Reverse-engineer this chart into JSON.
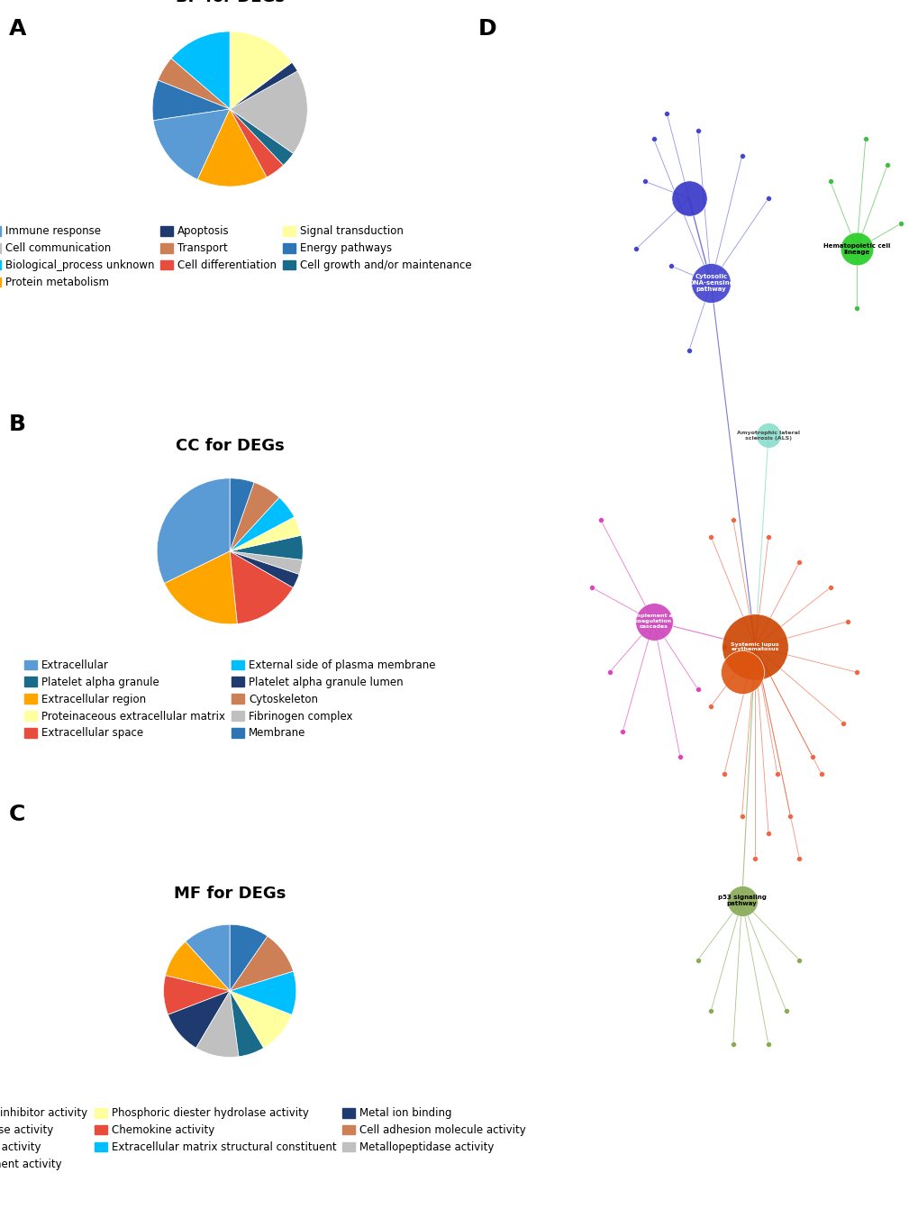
{
  "bp_title": "BP for DEGs",
  "bp_labels": [
    "Biological_process unknown",
    "Transport",
    "Energy pathways",
    "Immune response",
    "Protein metabolism",
    "Cell differentiation",
    "Cell growth and/or maintenance",
    "Cell communication",
    "Apoptosis",
    "Signal transduction"
  ],
  "bp_sizes": [
    13,
    5,
    8,
    15,
    14,
    4,
    3,
    17,
    2,
    14
  ],
  "bp_colors": [
    "#00BFFF",
    "#CD7F55",
    "#2E75B6",
    "#5B9BD5",
    "#FFA500",
    "#E74C3C",
    "#1A6B8A",
    "#C0C0C0",
    "#1F3A6E",
    "#FFFFA0"
  ],
  "cc_title": "CC for DEGs",
  "cc_labels": [
    "Extracellular",
    "Extracellular region",
    "Extracellular space",
    "Platelet alpha granule lumen",
    "Fibrinogen complex",
    "Platelet alpha granule",
    "Proteinaceous extracellular matrix",
    "External side of plasma membrane",
    "Cytoskeleton",
    "Membrane"
  ],
  "cc_sizes": [
    30,
    18,
    14,
    3,
    3,
    5,
    4,
    5,
    6,
    5
  ],
  "cc_colors": [
    "#5B9BD5",
    "#FFA500",
    "#E74C3C",
    "#1F3A6E",
    "#C0C0C0",
    "#1A6B8A",
    "#FFFFA0",
    "#00BFFF",
    "#CD7F55",
    "#2E75B6"
  ],
  "mf_title": "MF for DEGs",
  "mf_labels": [
    "Protease inhibitor activity",
    "Complement activity",
    "Chemokine activity",
    "Metal ion binding",
    "Metallopeptidase activity",
    "Deaminase activity",
    "Phosphoric diester hydrolase activity",
    "Extracellular matrix structural constituent",
    "Cell adhesion molecule activity",
    "Receptor activity"
  ],
  "mf_sizes": [
    11,
    9,
    9,
    10,
    10,
    6,
    10,
    10,
    10,
    9
  ],
  "mf_colors": [
    "#5B9BD5",
    "#FFA500",
    "#E74C3C",
    "#1F3A6E",
    "#C0C0C0",
    "#1A6B8A",
    "#FFFFA0",
    "#00BFFF",
    "#CD7F55",
    "#2E75B6"
  ],
  "panel_label_fontsize": 18,
  "title_fontsize": 13,
  "legend_fontsize": 8.5
}
